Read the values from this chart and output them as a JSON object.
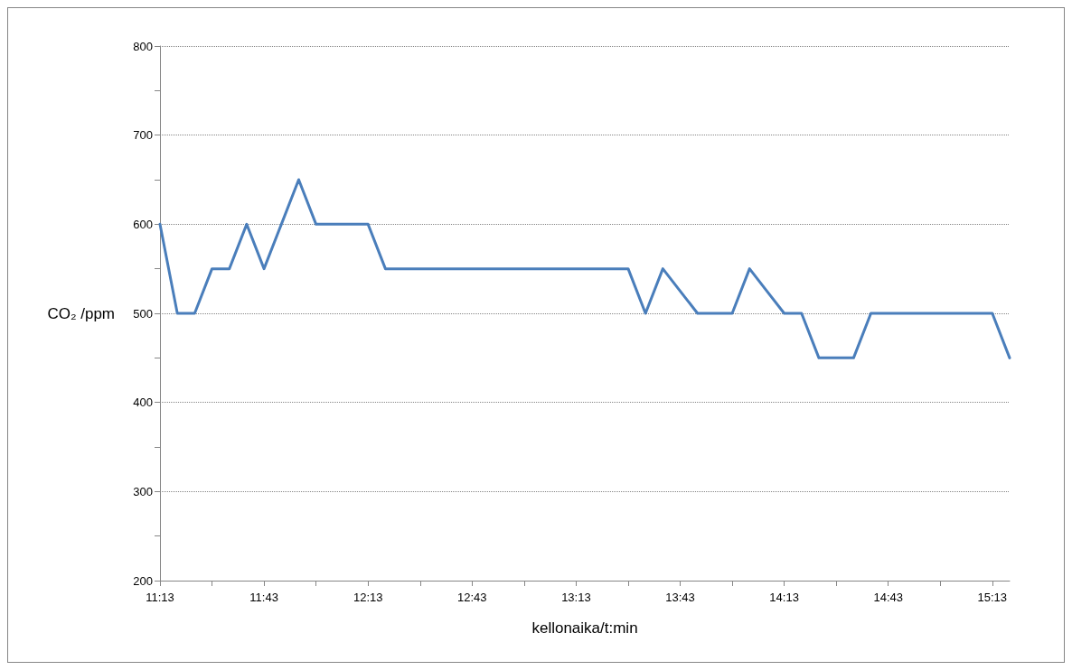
{
  "chart_data": {
    "type": "line",
    "xlabel": "kellonaika/t:min",
    "ylabel": "CO₂ /ppm",
    "categories": [
      "11:13",
      null,
      null,
      null,
      null,
      null,
      "11:43",
      null,
      null,
      null,
      null,
      null,
      "12:13",
      null,
      null,
      null,
      null,
      null,
      "12:43",
      null,
      null,
      null,
      null,
      null,
      "13:13",
      null,
      null,
      null,
      null,
      null,
      "13:43",
      null,
      null,
      null,
      null,
      null,
      "14:13",
      null,
      null,
      null,
      null,
      null,
      "14:43",
      null,
      null,
      null,
      null,
      null,
      "15:13",
      null
    ],
    "series": [
      {
        "color": "#4a7ebb",
        "values": [
          600,
          500,
          500,
          550,
          550,
          600,
          550,
          600,
          650,
          600,
          600,
          600,
          600,
          550,
          550,
          550,
          550,
          550,
          550,
          550,
          550,
          550,
          550,
          550,
          550,
          550,
          550,
          550,
          500,
          550,
          525,
          500,
          500,
          500,
          550,
          525,
          500,
          500,
          450,
          450,
          450,
          500,
          500,
          500,
          500,
          500,
          500,
          500,
          500,
          450
        ]
      }
    ],
    "ylim": [
      200,
      800
    ],
    "yticks": [
      200,
      {
        "value": 250,
        "label": null
      },
      300,
      {
        "value": 350,
        "label": null
      },
      400,
      {
        "value": 450,
        "label": null
      },
      500,
      {
        "value": 550,
        "label": null
      },
      600,
      {
        "value": 650,
        "label": null
      },
      700,
      {
        "value": 750,
        "label": null
      },
      800
    ],
    "grid": "y",
    "marker": "none",
    "line_style": "solid"
  }
}
